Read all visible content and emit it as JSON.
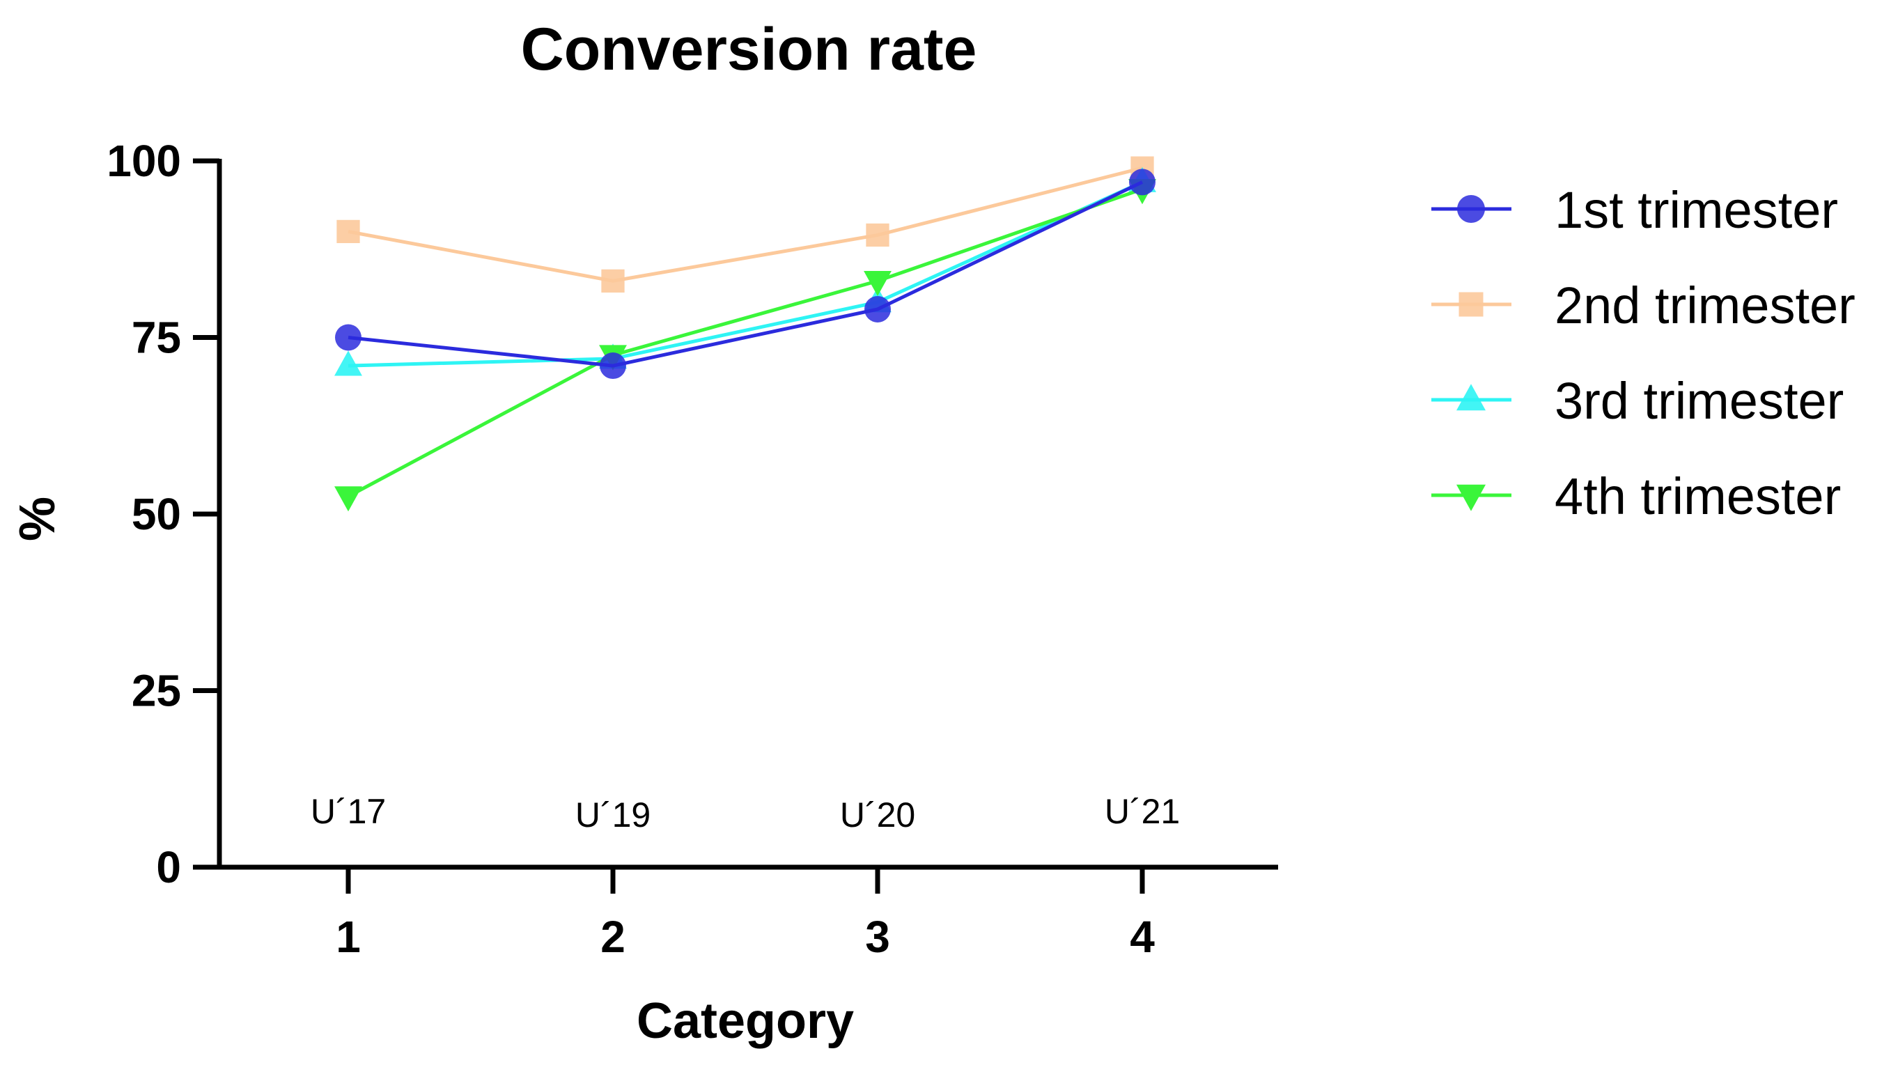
{
  "chart_data": {
    "type": "line",
    "title": "Conversion rate",
    "xlabel": "Category",
    "ylabel": "%",
    "categories": [
      "1",
      "2",
      "3",
      "4"
    ],
    "x": [
      1,
      2,
      3,
      4
    ],
    "xlim": [
      0.5,
      4.5
    ],
    "ylim": [
      0,
      100
    ],
    "yticks": [
      0,
      25,
      50,
      75,
      100
    ],
    "grid": false,
    "legend_position": "right",
    "annotations": [
      {
        "text": "U´17",
        "x": 1,
        "y": 8
      },
      {
        "text": "U´19",
        "x": 2,
        "y": 7.5
      },
      {
        "text": "U´20",
        "x": 3,
        "y": 7.5
      },
      {
        "text": "U´21",
        "x": 4,
        "y": 8
      }
    ],
    "series": [
      {
        "name": "1st trimester",
        "values": [
          75,
          71,
          79,
          97
        ],
        "color": "#2b2bdd",
        "marker": "circle",
        "marker_opacity": 0.85
      },
      {
        "name": "2nd trimester",
        "values": [
          90,
          83,
          89.5,
          99
        ],
        "color": "#fcc99b",
        "marker": "square",
        "marker_opacity": 0.9
      },
      {
        "name": "3rd trimester",
        "values": [
          71,
          72,
          80,
          97
        ],
        "color": "#2ef4f4",
        "marker": "triangle-up",
        "marker_opacity": 0.9
      },
      {
        "name": "4th trimester",
        "values": [
          52.5,
          72.5,
          83,
          96
        ],
        "color": "#3af53a",
        "marker": "triangle-down",
        "marker_opacity": 1
      }
    ]
  }
}
